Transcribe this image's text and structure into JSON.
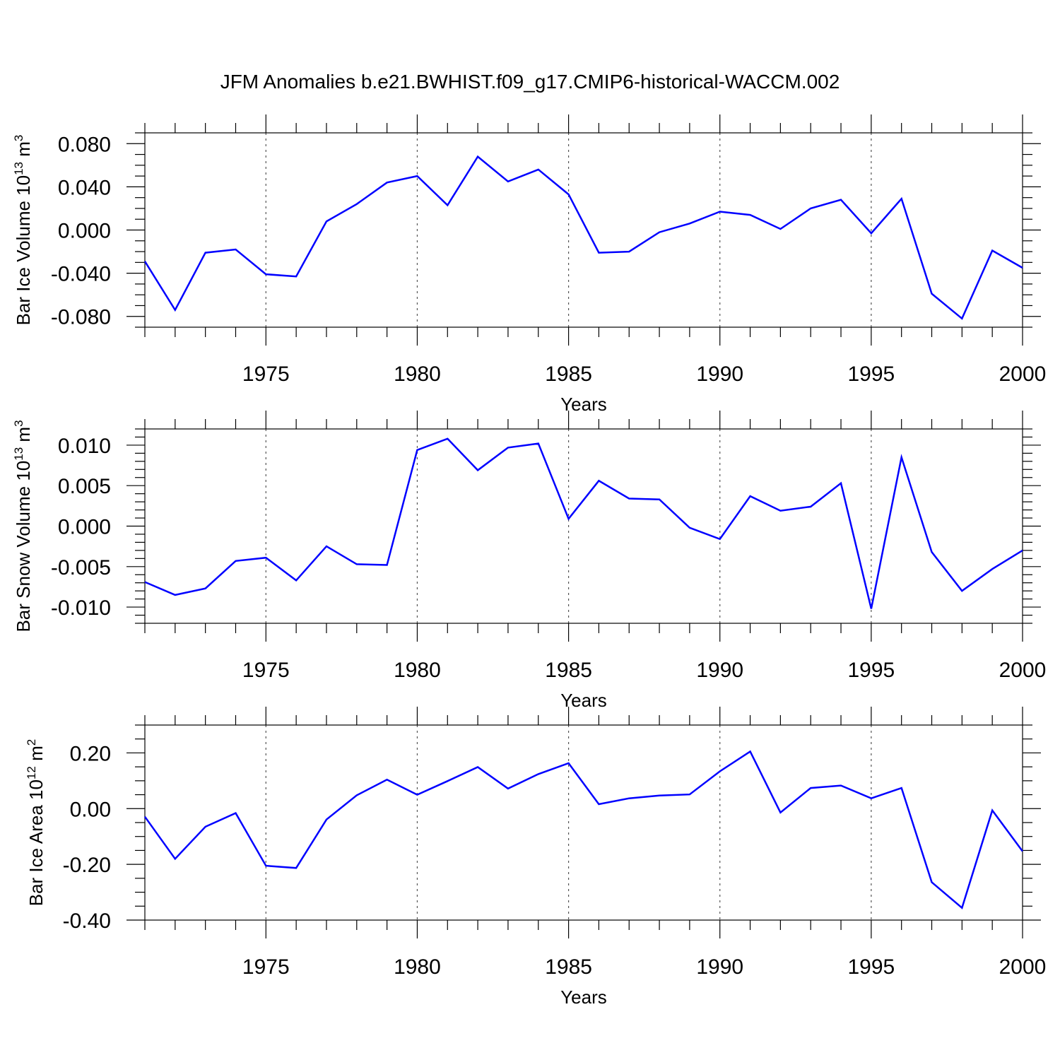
{
  "title": "JFM Anomalies b.e21.BWHIST.f09_g17.CMIP6-historical-WACCM.002",
  "line_color": "#0000ff",
  "chart_data": [
    {
      "type": "line",
      "title": "",
      "xlabel": "Years",
      "ylabel": {
        "text": "Bar Ice Volume 10",
        "sup": "13",
        "unit": " m",
        "unit_sup": "3"
      },
      "xlim": [
        1971,
        2000
      ],
      "ylim": [
        -0.09,
        0.09
      ],
      "xticks": [
        1975,
        1980,
        1985,
        1990,
        1995,
        2000
      ],
      "yticks": [
        -0.08,
        -0.04,
        0.0,
        0.04,
        0.08
      ],
      "ytick_labels": [
        "-0.080",
        "-0.040",
        "0.000",
        "0.040",
        "0.080"
      ],
      "y_minor_step": 0.01,
      "grid": "dashed vertical at major x ticks",
      "x": [
        1971,
        1972,
        1973,
        1974,
        1975,
        1976,
        1977,
        1978,
        1979,
        1980,
        1981,
        1982,
        1983,
        1984,
        1985,
        1986,
        1987,
        1988,
        1989,
        1990,
        1991,
        1992,
        1993,
        1994,
        1995,
        1996,
        1997,
        1998,
        1999,
        2000
      ],
      "values": [
        -0.029,
        -0.074,
        -0.021,
        -0.018,
        -0.041,
        -0.043,
        0.008,
        0.024,
        0.044,
        0.05,
        0.023,
        0.068,
        0.045,
        0.056,
        0.033,
        -0.021,
        -0.02,
        -0.002,
        0.006,
        0.017,
        0.014,
        0.001,
        0.02,
        0.028,
        -0.003,
        0.029,
        -0.059,
        -0.082,
        -0.019,
        -0.035
      ]
    },
    {
      "type": "line",
      "title": "",
      "xlabel": "Years",
      "ylabel": {
        "text": "Bar Snow Volume 10",
        "sup": "13",
        "unit": " m",
        "unit_sup": "3"
      },
      "xlim": [
        1971,
        2000
      ],
      "ylim": [
        -0.012,
        0.012
      ],
      "xticks": [
        1975,
        1980,
        1985,
        1990,
        1995,
        2000
      ],
      "yticks": [
        -0.01,
        -0.005,
        0.0,
        0.005,
        0.01
      ],
      "ytick_labels": [
        "-0.010",
        "-0.005",
        "0.000",
        "0.005",
        "0.010"
      ],
      "y_minor_step": 0.001,
      "grid": "dashed vertical at major x ticks",
      "x": [
        1971,
        1972,
        1973,
        1974,
        1975,
        1976,
        1977,
        1978,
        1979,
        1980,
        1981,
        1982,
        1983,
        1984,
        1985,
        1986,
        1987,
        1988,
        1989,
        1990,
        1991,
        1992,
        1993,
        1994,
        1995,
        1996,
        1997,
        1998,
        1999,
        2000
      ],
      "values": [
        -0.0069,
        -0.0085,
        -0.0077,
        -0.0043,
        -0.0039,
        -0.0067,
        -0.0025,
        -0.0047,
        -0.0048,
        0.0094,
        0.0108,
        0.0069,
        0.0097,
        0.0102,
        0.0009,
        0.0056,
        0.0034,
        0.0033,
        -0.0002,
        -0.0016,
        0.0037,
        0.0019,
        0.0024,
        0.0053,
        -0.0102,
        0.0085,
        -0.0032,
        -0.008,
        -0.0053,
        -0.003
      ]
    },
    {
      "type": "line",
      "title": "",
      "xlabel": "Years",
      "ylabel": {
        "text": "Bar Ice Area 10",
        "sup": "12",
        "unit": " m",
        "unit_sup": "2"
      },
      "xlim": [
        1971,
        2000
      ],
      "ylim": [
        -0.4,
        0.3
      ],
      "xticks": [
        1975,
        1980,
        1985,
        1990,
        1995,
        2000
      ],
      "yticks": [
        -0.4,
        -0.2,
        0.0,
        0.2
      ],
      "ytick_labels": [
        "-0.40",
        "-0.20",
        "0.00",
        "0.20"
      ],
      "y_minor_step": 0.05,
      "grid": "dashed vertical at major x ticks",
      "x": [
        1971,
        1972,
        1973,
        1974,
        1975,
        1976,
        1977,
        1978,
        1979,
        1980,
        1981,
        1982,
        1983,
        1984,
        1985,
        1986,
        1987,
        1988,
        1989,
        1990,
        1991,
        1992,
        1993,
        1994,
        1995,
        1996,
        1997,
        1998,
        1999,
        2000
      ],
      "values": [
        -0.029,
        -0.18,
        -0.065,
        -0.016,
        -0.205,
        -0.213,
        -0.039,
        0.048,
        0.104,
        0.05,
        0.099,
        0.149,
        0.072,
        0.124,
        0.163,
        0.016,
        0.037,
        0.047,
        0.051,
        0.134,
        0.205,
        -0.014,
        0.074,
        0.083,
        0.037,
        0.074,
        -0.264,
        -0.356,
        -0.006,
        -0.153
      ]
    }
  ]
}
